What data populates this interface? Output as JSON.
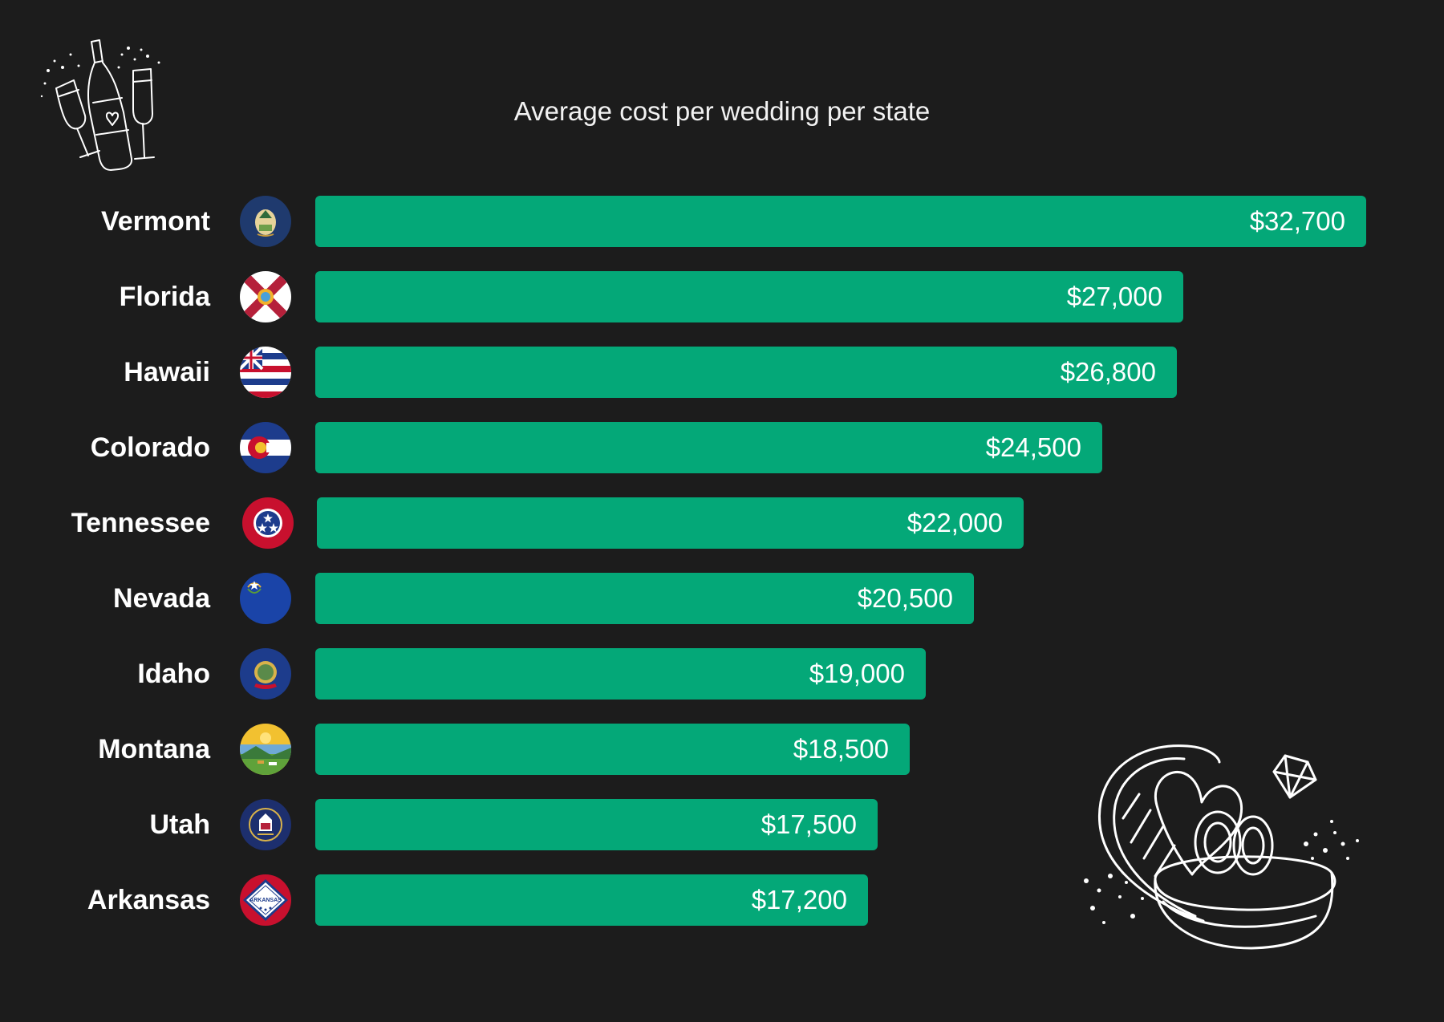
{
  "chart_data": {
    "type": "bar",
    "orientation": "horizontal",
    "title": "Average cost per wedding per state",
    "xlabel": "",
    "ylabel": "",
    "categories": [
      "Vermont",
      "Florida",
      "Hawaii",
      "Colorado",
      "Tennessee",
      "Nevada",
      "Idaho",
      "Montana",
      "Utah",
      "Arkansas"
    ],
    "values": [
      32700,
      27000,
      26800,
      24500,
      22000,
      20500,
      19000,
      18500,
      17500,
      17200
    ],
    "value_labels": [
      "$32,700",
      "$27,000",
      "$26,800",
      "$24,500",
      "$22,000",
      "$20,500",
      "$19,000",
      "$18,500",
      "$17,500",
      "$17,200"
    ],
    "flag_icons": [
      "vermont-flag-icon",
      "florida-flag-icon",
      "hawaii-flag-icon",
      "colorado-flag-icon",
      "tennessee-flag-icon",
      "nevada-flag-icon",
      "idaho-flag-icon",
      "montana-flag-icon",
      "utah-flag-icon",
      "arkansas-flag-icon"
    ],
    "xlim": [
      0,
      32700
    ],
    "grid": false,
    "legend": "none"
  },
  "colors": {
    "background": "#1c1c1c",
    "bar": "#04a878",
    "text": "#ffffff"
  },
  "decorations": [
    "champagne-icon",
    "ring-box-icon"
  ],
  "flag_labels": {
    "arkansas": "ARKANSAS"
  }
}
